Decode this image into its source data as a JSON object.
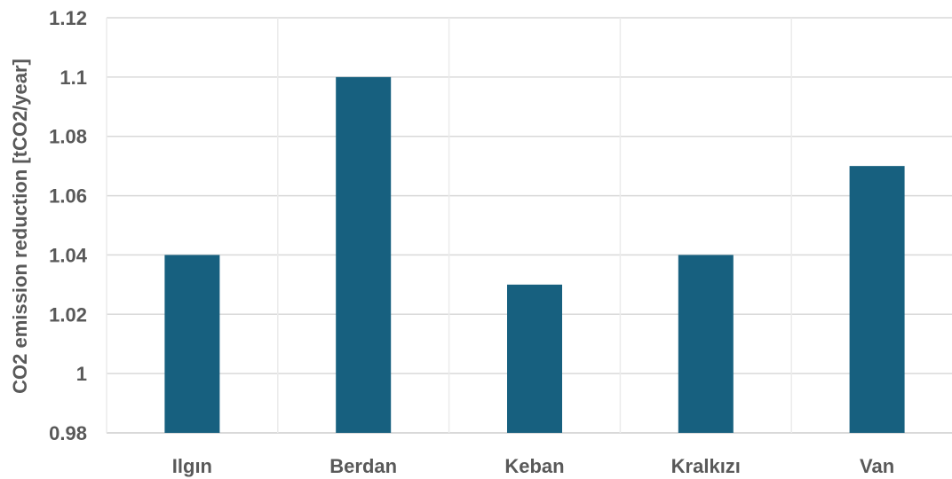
{
  "chart_data": {
    "type": "bar",
    "title": "",
    "xlabel": "",
    "ylabel": "CO2 emission reduction [tCO2/year]",
    "categories": [
      "Ilgın",
      "Berdan",
      "Keban",
      "Kralkızı",
      "Van"
    ],
    "values": [
      1.04,
      1.1,
      1.03,
      1.04,
      1.07
    ],
    "ylim": [
      0.98,
      1.12
    ],
    "yticks": [
      "0.98",
      "1",
      "1.02",
      "1.04",
      "1.06",
      "1.08",
      "1.1",
      "1.12"
    ],
    "grid": true,
    "legend": "none",
    "bar_color": "#17607f",
    "grid_color": "#d9d9d9"
  }
}
